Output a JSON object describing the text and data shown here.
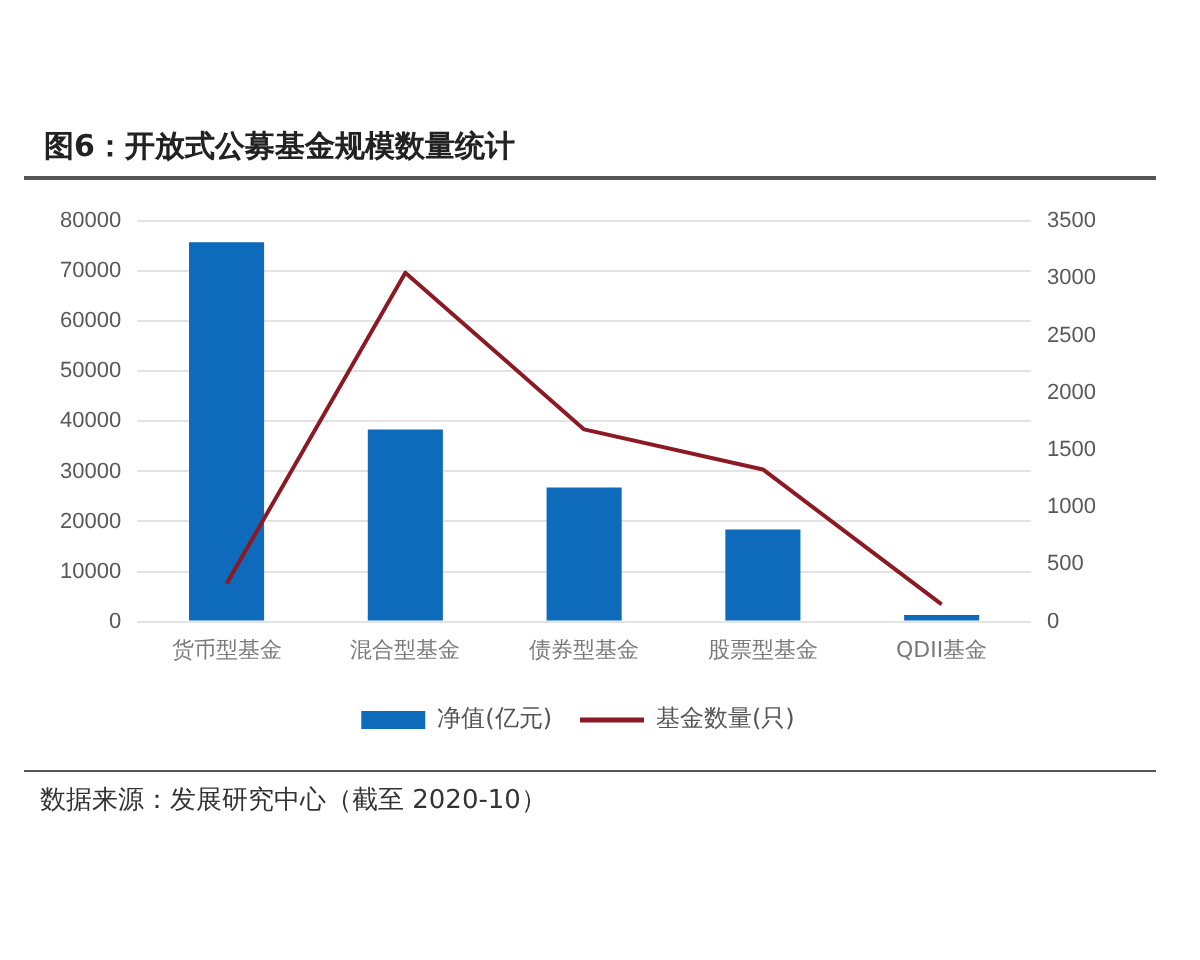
{
  "chart_data": {
    "type": "bar",
    "title": "图6：开放式公募基金规模数量统计",
    "categories": [
      "货币型基金",
      "混合型基金",
      "债券型基金",
      "股票型基金",
      "QDII基金"
    ],
    "series": [
      {
        "name": "净值(亿元)",
        "color": "#0e6abb",
        "values": [
          75800,
          38400,
          26800,
          18400,
          1300
        ]
      },
      {
        "name": "基金数量(只)",
        "type": "line",
        "axis": "y2",
        "color": "#8b1a24",
        "values": [
          330,
          3050,
          1680,
          1330,
          150
        ]
      }
    ],
    "ylim": [
      0,
      80000
    ],
    "yticks": [
      0,
      10000,
      20000,
      30000,
      40000,
      50000,
      60000,
      70000,
      80000
    ],
    "y2lim": [
      0,
      3500
    ],
    "y2ticks": [
      0,
      500,
      1000,
      1500,
      2000,
      2500,
      3000,
      3500
    ],
    "grid": "y",
    "legend": "bottom",
    "annotations": [
      "数据来源：发展研究中心（截至 2020-10）"
    ]
  }
}
